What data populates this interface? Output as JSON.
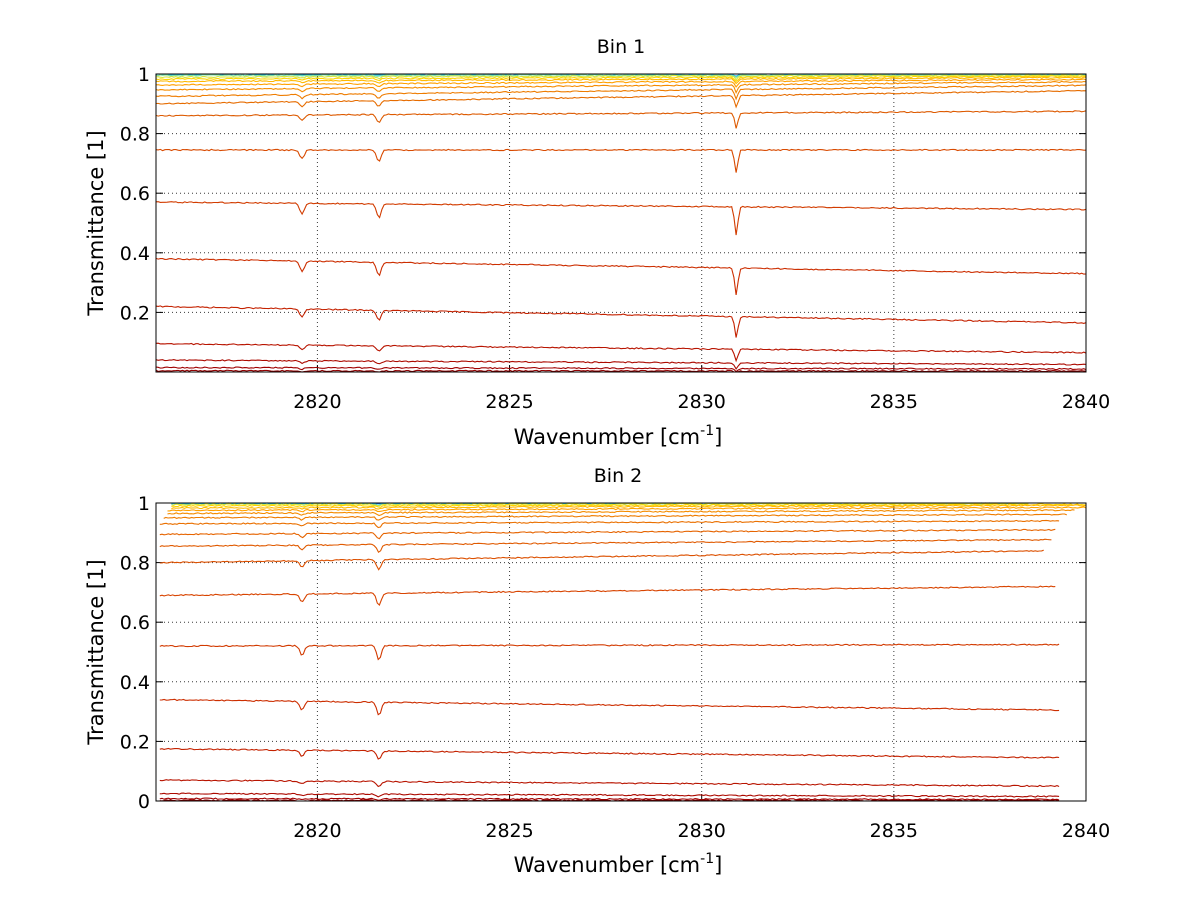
{
  "chart_data": [
    {
      "type": "line",
      "title": "Bin 1",
      "xlabel": "Wavenumber [cm",
      "xlabel_sup": "-1",
      "xlabel_end": "]",
      "ylabel": "Transmittance [1]",
      "xlim": [
        2815.8,
        2840
      ],
      "ylim": [
        0,
        1
      ],
      "xticks": [
        2820,
        2825,
        2830,
        2835,
        2840
      ],
      "xtick_labels": [
        "2820",
        "2825",
        "2830",
        "2835",
        "2840"
      ],
      "yticks": [
        0.2,
        0.4,
        0.6,
        0.8,
        1
      ],
      "ytick_labels": [
        "0.2",
        "0.4",
        "0.6",
        "0.8",
        "1"
      ],
      "grid": true,
      "x_end": 2840,
      "absorption_lines": [
        {
          "x": 2819.6,
          "width": 0.08,
          "strength": 0.035
        },
        {
          "x": 2821.6,
          "width": 0.08,
          "strength": 0.045
        },
        {
          "x": 2830.9,
          "width": 0.06,
          "strength": 0.09
        }
      ],
      "series": [
        {
          "start": 1.0,
          "end": 1.0,
          "color": "#1e78e6"
        },
        {
          "start": 0.998,
          "end": 0.999,
          "color": "#28c8f0"
        },
        {
          "start": 0.995,
          "end": 0.997,
          "color": "#7de0a0"
        },
        {
          "start": 0.99,
          "end": 0.995,
          "color": "#d6e63c"
        },
        {
          "start": 0.983,
          "end": 0.992,
          "color": "#ffd400"
        },
        {
          "start": 0.975,
          "end": 0.988,
          "color": "#ffb800"
        },
        {
          "start": 0.963,
          "end": 0.982,
          "color": "#ffa000"
        },
        {
          "start": 0.947,
          "end": 0.974,
          "color": "#f58c00"
        },
        {
          "start": 0.925,
          "end": 0.962,
          "color": "#ee7c00"
        },
        {
          "start": 0.9,
          "end": 0.944,
          "color": "#e66c00"
        },
        {
          "start": 0.86,
          "end": 0.875,
          "color": "#dd5a00"
        },
        {
          "start": 0.745,
          "end": 0.745,
          "color": "#d84a00"
        },
        {
          "start": 0.57,
          "end": 0.545,
          "color": "#d23c00"
        },
        {
          "start": 0.38,
          "end": 0.33,
          "color": "#cc2e00"
        },
        {
          "start": 0.22,
          "end": 0.165,
          "color": "#c42200"
        },
        {
          "start": 0.095,
          "end": 0.065,
          "color": "#b81400"
        },
        {
          "start": 0.04,
          "end": 0.025,
          "color": "#ac0a00"
        },
        {
          "start": 0.015,
          "end": 0.01,
          "color": "#a00000"
        },
        {
          "start": 0.004,
          "end": 0.003,
          "color": "#920000"
        }
      ]
    },
    {
      "type": "line",
      "title": "Bin 2",
      "xlabel": "Wavenumber [cm",
      "xlabel_sup": "-1",
      "xlabel_end": "]",
      "ylabel": "Transmittance [1]",
      "xlim": [
        2815.8,
        2840
      ],
      "ylim": [
        0,
        1
      ],
      "xticks": [
        2820,
        2825,
        2830,
        2835,
        2840
      ],
      "xtick_labels": [
        "2820",
        "2825",
        "2830",
        "2835",
        "2840"
      ],
      "yticks": [
        0,
        0.2,
        0.4,
        0.6,
        0.8,
        1
      ],
      "ytick_labels": [
        "0",
        "0.2",
        "0.4",
        "0.6",
        "0.8",
        "1"
      ],
      "grid": true,
      "absorption_lines": [
        {
          "x": 2819.6,
          "width": 0.08,
          "strength": 0.03
        },
        {
          "x": 2821.6,
          "width": 0.08,
          "strength": 0.045
        }
      ],
      "series": [
        {
          "start": 1.0,
          "end": 1.0,
          "x_start": 2816.2,
          "x_end": 2838.5,
          "color": "#1e78e6"
        },
        {
          "start": 0.998,
          "end": 0.999,
          "x_start": 2816.2,
          "x_end": 2838.5,
          "color": "#28c8f0"
        },
        {
          "start": 0.995,
          "end": 0.998,
          "x_start": 2816.2,
          "x_end": 2838.5,
          "color": "#d6e63c"
        },
        {
          "start": 0.99,
          "end": 0.995,
          "x_start": 2816.2,
          "x_end": 2840.0,
          "color": "#ffd400"
        },
        {
          "start": 0.983,
          "end": 0.992,
          "x_start": 2816.2,
          "x_end": 2840.0,
          "color": "#ffb800"
        },
        {
          "start": 0.975,
          "end": 0.985,
          "x_start": 2816.1,
          "x_end": 2840.0,
          "color": "#ffa000"
        },
        {
          "start": 0.965,
          "end": 0.976,
          "x_start": 2816.1,
          "x_end": 2839.7,
          "color": "#f58c00"
        },
        {
          "start": 0.95,
          "end": 0.962,
          "x_start": 2816.0,
          "x_end": 2839.5,
          "color": "#ee7c00"
        },
        {
          "start": 0.93,
          "end": 0.94,
          "x_start": 2815.9,
          "x_end": 2839.3,
          "color": "#ea7000"
        },
        {
          "start": 0.895,
          "end": 0.91,
          "x_start": 2815.9,
          "x_end": 2839.2,
          "color": "#e66400"
        },
        {
          "start": 0.855,
          "end": 0.877,
          "x_start": 2815.9,
          "x_end": 2839.1,
          "color": "#e05a00"
        },
        {
          "start": 0.8,
          "end": 0.84,
          "x_start": 2815.9,
          "x_end": 2838.9,
          "color": "#dc5000"
        },
        {
          "start": 0.69,
          "end": 0.72,
          "x_start": 2815.9,
          "x_end": 2839.2,
          "color": "#d84400"
        },
        {
          "start": 0.52,
          "end": 0.525,
          "x_start": 2815.9,
          "x_end": 2839.3,
          "color": "#d23a00"
        },
        {
          "start": 0.34,
          "end": 0.305,
          "x_start": 2815.9,
          "x_end": 2839.3,
          "color": "#cc2e00"
        },
        {
          "start": 0.175,
          "end": 0.145,
          "x_start": 2815.9,
          "x_end": 2839.3,
          "color": "#c42200"
        },
        {
          "start": 0.07,
          "end": 0.05,
          "x_start": 2815.9,
          "x_end": 2839.3,
          "color": "#b81400"
        },
        {
          "start": 0.025,
          "end": 0.015,
          "x_start": 2815.9,
          "x_end": 2839.3,
          "color": "#ac0a00"
        },
        {
          "start": 0.008,
          "end": 0.005,
          "x_start": 2815.9,
          "x_end": 2839.3,
          "color": "#a00000"
        },
        {
          "start": 0.002,
          "end": 0.002,
          "x_start": 2815.9,
          "x_end": 2839.3,
          "color": "#920000"
        }
      ]
    }
  ]
}
